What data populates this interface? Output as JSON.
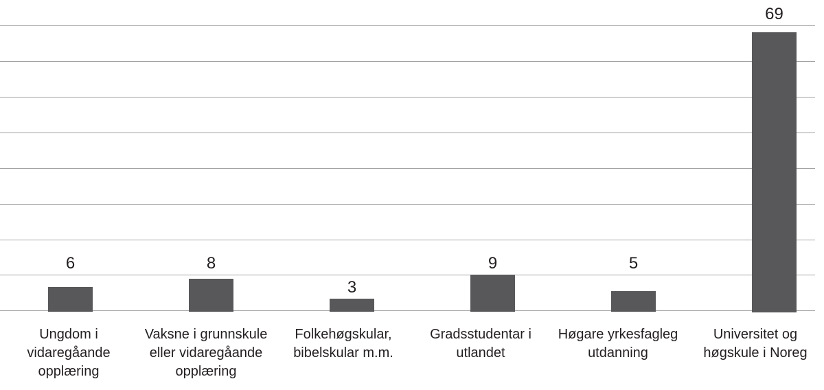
{
  "chart_data": {
    "type": "bar",
    "title": "",
    "xlabel": "",
    "ylabel": "",
    "categories": [
      "Ungdom i vidaregåande opplæring",
      "Vaksne i grunnskule eller vidaregåande opplæring",
      "Folkehøgskular, bibelskular m.m.",
      "Gradsstudentar i utlandet",
      "Høgare yrkesfagleg utdanning",
      "Universitet og høgskule i Noreg"
    ],
    "category_label_lines": [
      [
        "Ungdom i",
        "vidaregåande",
        "opplæring"
      ],
      [
        "Vaksne i grunnskule",
        "eller vidaregåande",
        "opplæring"
      ],
      [
        "Folkehøgskular,",
        "bibelskular m.m."
      ],
      [
        "Gradsstudentar i",
        "utlandet"
      ],
      [
        "Høgare yrkesfagleg",
        "utdanning"
      ],
      [
        "Universitet og",
        "høgskule i Noreg"
      ]
    ],
    "values": [
      6,
      8,
      3,
      9,
      5,
      69
    ],
    "value_labels": [
      "6",
      "8",
      "3",
      "9",
      "5",
      "69"
    ],
    "ylim": [
      0,
      70.5
    ],
    "gridline_count": 9,
    "y_tick_labels_visible": false,
    "grid": true,
    "legend_position": "none",
    "colors": {
      "bar": "#58585a",
      "gridline": "#a1a1a3",
      "text": "#231f20",
      "background": "#ffffff"
    }
  }
}
